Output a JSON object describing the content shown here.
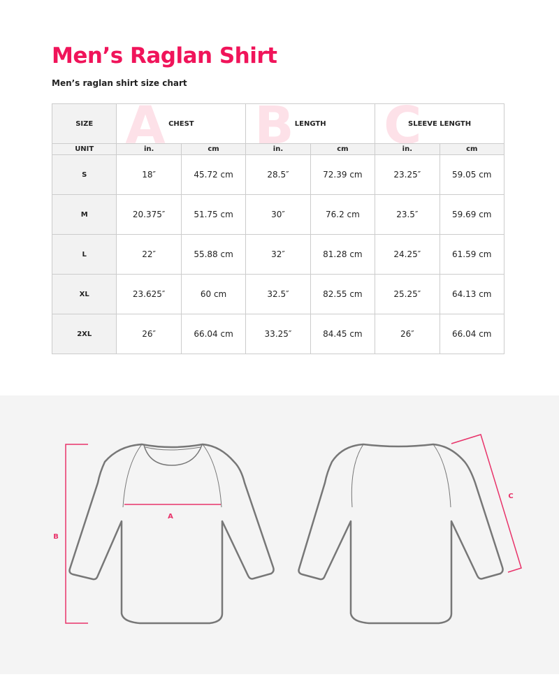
{
  "title": "Men’s Raglan Shirt",
  "subtitle": "Men’s raglan shirt size chart",
  "accent": "#f0145a",
  "table": {
    "size_label": "SIZE",
    "unit_label": "UNIT",
    "groups": [
      {
        "letter": "A",
        "label": "CHEST"
      },
      {
        "letter": "B",
        "label": "LENGTH"
      },
      {
        "letter": "C",
        "label": "SLEEVE LENGTH"
      }
    ],
    "units": [
      "in.",
      "cm",
      "in.",
      "cm",
      "in.",
      "cm"
    ],
    "rows": [
      [
        "S",
        "18″",
        "45.72 cm",
        "28.5″",
        "72.39 cm",
        "23.25″",
        "59.05 cm"
      ],
      [
        "M",
        "20.375″",
        "51.75 cm",
        "30″",
        "76.2 cm",
        "23.5″",
        "59.69 cm"
      ],
      [
        "L",
        "22″",
        "55.88 cm",
        "32″",
        "81.28 cm",
        "24.25″",
        "61.59 cm"
      ],
      [
        "XL",
        "23.625″",
        "60 cm",
        "32.5″",
        "82.55 cm",
        "25.25″",
        "64.13 cm"
      ],
      [
        "2XL",
        "26″",
        "66.04 cm",
        "33.25″",
        "84.45 cm",
        "26″",
        "66.04 cm"
      ]
    ]
  },
  "diagram": {
    "a": "A",
    "b": "B",
    "c": "C"
  }
}
